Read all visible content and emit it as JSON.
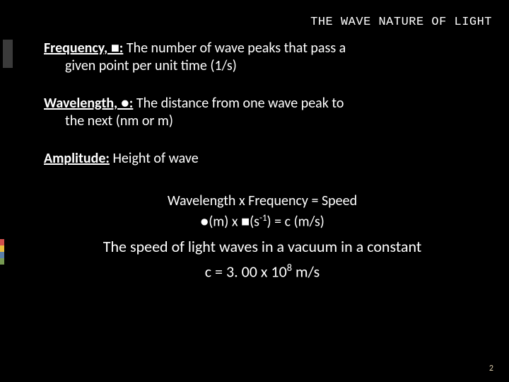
{
  "colors": {
    "background": "#000000",
    "text": "#ffffff",
    "accent_block": "#3a3a3a",
    "page_num": "#d8c9a8",
    "strip": [
      "#d0504d",
      "#e8bd3c",
      "#5a7ea8",
      "#769a52"
    ]
  },
  "header": {
    "title": "THE WAVE NATURE OF LIGHT"
  },
  "defs": {
    "frequency": {
      "term": "Frequency, ■:",
      "line1": "  The number of wave peaks that pass a",
      "line2": "given point per unit time (1/s)"
    },
    "wavelength": {
      "term": "Wavelength, ●:",
      "line1": "  The distance from one wave peak to",
      "line2": "the next (nm or m)"
    },
    "amplitude": {
      "term": "Amplitude:",
      "line1": "  Height of wave"
    }
  },
  "speed": {
    "eq1": "Wavelength x Frequency = Speed",
    "eq2_pre": "●(m) x ■(s",
    "eq2_sup": "-1",
    "eq2_post": ") = c (m/s)",
    "desc": "The speed of light waves in a vacuum in a constant",
    "c_pre": "c = 3. 00  x  10",
    "c_sup": "8",
    "c_post": " m/s"
  },
  "page_number": "2"
}
